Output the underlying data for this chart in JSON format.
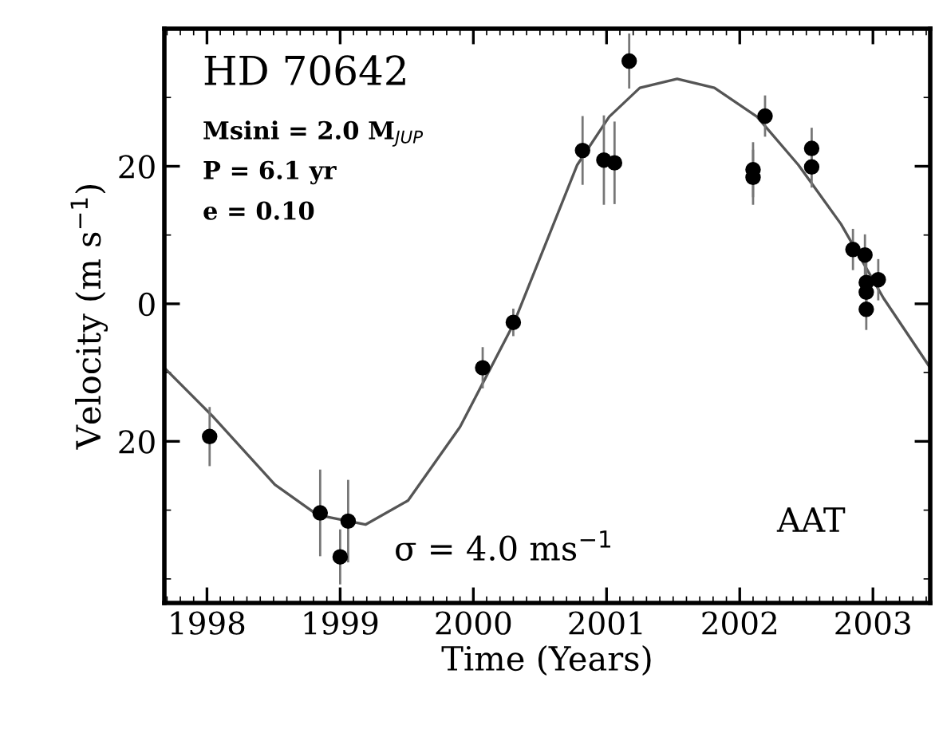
{
  "chart_data": {
    "type": "scatter",
    "xlabel": "Time (Years)",
    "ylabel": "Velocity (m s$^{−1}$)",
    "xlim": [
      1997.68,
      2003.43
    ],
    "ylim": [
      -43.5,
      40
    ],
    "xticks": [
      1998,
      1999,
      2000,
      2001,
      2002,
      2003
    ],
    "yticks": [
      20,
      0,
      {
        "value": -20,
        "label": "20"
      }
    ],
    "grid": false,
    "series": [
      {
        "type": "line",
        "color": "#555555",
        "line_style": "solid",
        "marker": "none",
        "x": [
          1997.68,
          1998.04,
          1998.51,
          1998.83,
          1999.19,
          1999.51,
          1999.9,
          2000.3,
          2000.78,
          2001.02,
          2001.25,
          2001.53,
          2001.81,
          2002.13,
          2002.44,
          2002.76,
          2003.08,
          2003.43
        ],
        "values": [
          -9.3,
          -16.3,
          -26.3,
          -30.7,
          -32.1,
          -28.6,
          -17.9,
          -3.0,
          20.2,
          27.2,
          31.4,
          32.7,
          31.4,
          27.2,
          20.2,
          11.6,
          0.8,
          -9.3
        ]
      },
      {
        "color": "#000000",
        "marker": "circle",
        "x": [
          1998.02,
          1998.85,
          1999.06,
          1999.0,
          2000.07,
          2000.3,
          2000.82,
          2000.98,
          2001.06,
          2001.17,
          2002.1,
          2002.1,
          2002.19,
          2002.54,
          2002.54,
          2002.85,
          2002.94,
          2002.95,
          2002.95,
          2002.95,
          2003.04
        ],
        "values": [
          -19.3,
          -30.4,
          -31.6,
          -36.8,
          -9.3,
          -2.7,
          22.3,
          20.9,
          20.5,
          35.3,
          19.5,
          18.4,
          27.3,
          22.6,
          19.9,
          7.9,
          7.1,
          3.1,
          1.7,
          -0.8,
          3.5
        ],
        "errors": [
          4.3,
          6.3,
          6,
          4,
          3,
          2,
          5,
          6.5,
          6,
          4,
          4,
          4,
          3,
          3,
          3,
          3,
          3,
          3,
          3,
          3,
          3
        ]
      }
    ],
    "annotations": [
      "HD 70642",
      "Msini = 2.0 M$_{JUP}$",
      "P = 6.1 yr",
      "e = 0.10",
      "σ = 4.0 ms$^{−1}$",
      "AAT"
    ]
  }
}
